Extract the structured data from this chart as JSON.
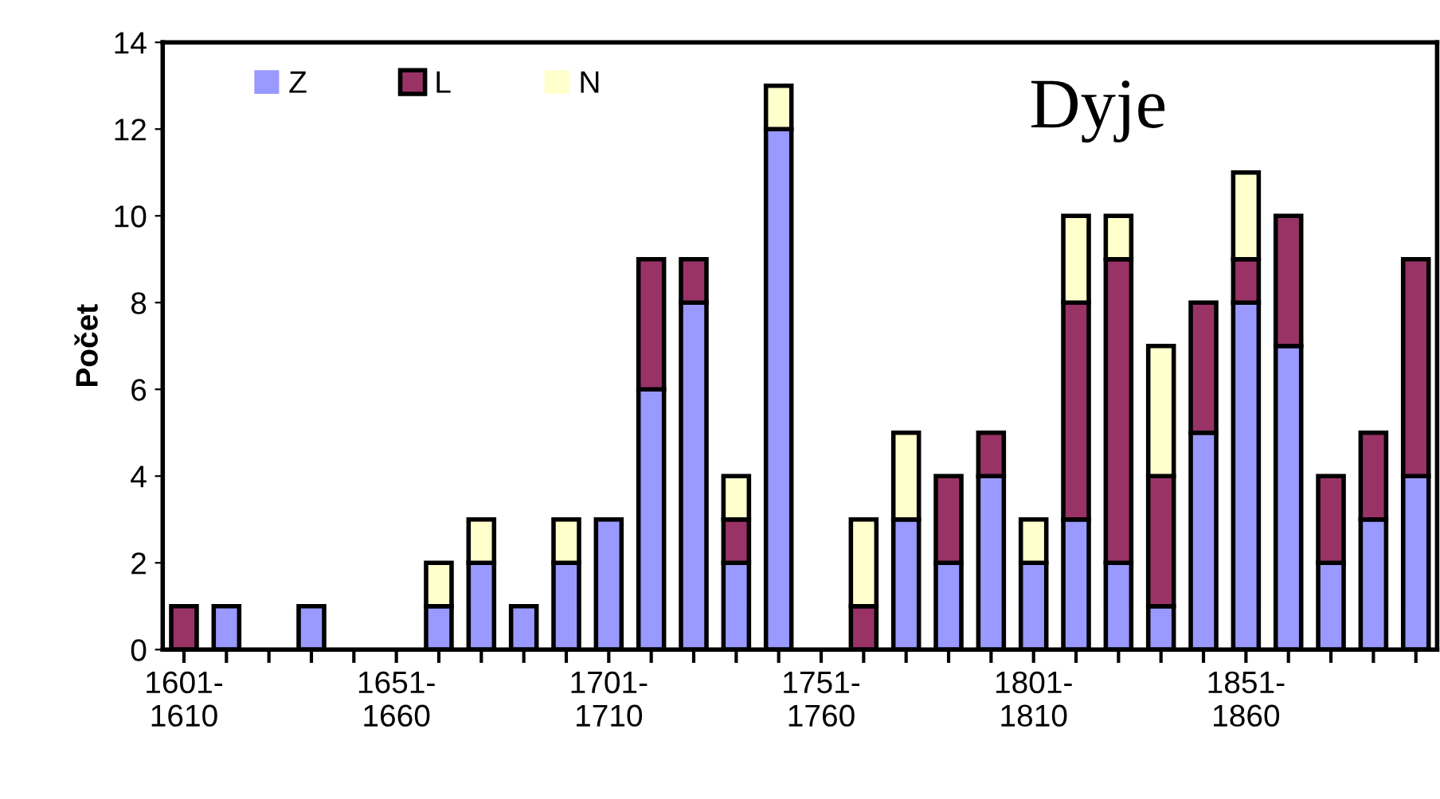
{
  "chart_data": {
    "type": "bar",
    "stacked": true,
    "title": "Dyje",
    "ylabel": "Počet",
    "categories": [
      "1601-\n1610",
      null,
      null,
      null,
      null,
      "1651-\n1660",
      null,
      null,
      null,
      null,
      "1701-\n1710",
      null,
      null,
      null,
      null,
      "1751-\n1760",
      null,
      null,
      null,
      null,
      "1801-\n1810",
      null,
      null,
      null,
      null,
      "1851-\n1860",
      null,
      null,
      null,
      null
    ],
    "series": [
      {
        "name": "Z",
        "color": "#9999ff",
        "values": [
          0,
          1,
          0,
          1,
          0,
          0,
          1,
          2,
          1,
          2,
          3,
          6,
          8,
          2,
          12,
          0,
          0,
          3,
          2,
          4,
          2,
          3,
          2,
          1,
          5,
          8,
          7,
          2,
          3,
          4
        ]
      },
      {
        "name": "L",
        "color": "#993366",
        "values": [
          1,
          0,
          0,
          0,
          0,
          0,
          0,
          0,
          0,
          0,
          0,
          3,
          1,
          1,
          0,
          0,
          1,
          0,
          2,
          1,
          0,
          5,
          7,
          3,
          3,
          1,
          3,
          2,
          2,
          5
        ]
      },
      {
        "name": "N",
        "color": "#ffffcc",
        "values": [
          0,
          0,
          0,
          0,
          0,
          0,
          1,
          1,
          0,
          1,
          0,
          0,
          0,
          1,
          1,
          0,
          2,
          2,
          0,
          0,
          1,
          2,
          1,
          3,
          0,
          2,
          0,
          0,
          0,
          0
        ]
      }
    ],
    "ylim": [
      0,
      14
    ],
    "yticks": [
      0,
      2,
      4,
      6,
      8,
      10,
      12,
      14
    ],
    "grid": false,
    "legend": "top left"
  }
}
